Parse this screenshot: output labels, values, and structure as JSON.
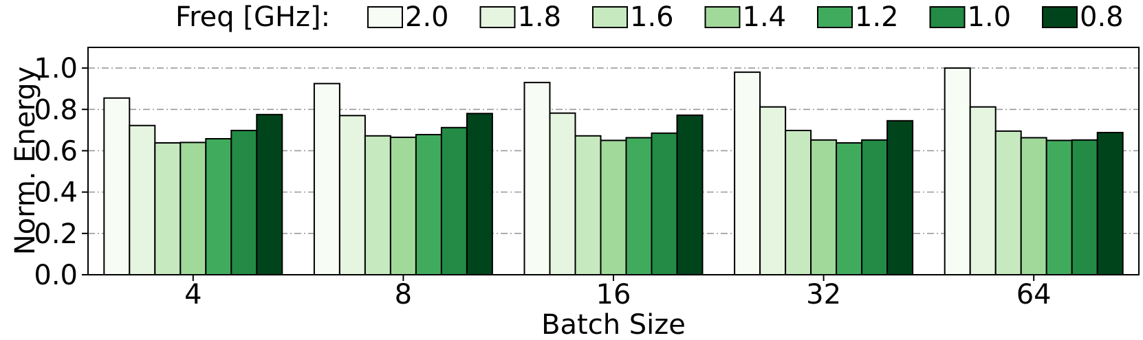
{
  "chart_data": {
    "type": "bar",
    "xlabel": "Batch Size",
    "ylabel": "Norm. Energy",
    "ylim": [
      0,
      1.1
    ],
    "yticks": [
      "0.0",
      "0.2",
      "0.4",
      "0.6",
      "0.8",
      "1.0"
    ],
    "grid": "horizontal dash-dot",
    "legend": {
      "title": "Freq [GHz]:",
      "placement": "top",
      "entries": [
        "2.0",
        "1.8",
        "1.6",
        "1.4",
        "1.2",
        "1.0",
        "0.8"
      ]
    },
    "categories": [
      "4",
      "8",
      "16",
      "32",
      "64"
    ],
    "series": [
      {
        "name": "2.0",
        "color": "#f7fcf5",
        "values": [
          0.855,
          0.925,
          0.93,
          0.98,
          1.0
        ]
      },
      {
        "name": "1.8",
        "color": "#e5f5e0",
        "values": [
          0.722,
          0.77,
          0.782,
          0.812,
          0.812
        ]
      },
      {
        "name": "1.6",
        "color": "#c7e9c0",
        "values": [
          0.638,
          0.672,
          0.672,
          0.698,
          0.695
        ]
      },
      {
        "name": "1.4",
        "color": "#a1d99b",
        "values": [
          0.64,
          0.665,
          0.65,
          0.652,
          0.663
        ]
      },
      {
        "name": "1.2",
        "color": "#41ab5d",
        "values": [
          0.658,
          0.678,
          0.663,
          0.638,
          0.65
        ]
      },
      {
        "name": "1.0",
        "color": "#238b45",
        "values": [
          0.698,
          0.712,
          0.685,
          0.652,
          0.652
        ]
      },
      {
        "name": "0.8",
        "color": "#00441b",
        "values": [
          0.775,
          0.78,
          0.772,
          0.745,
          0.688
        ]
      }
    ]
  }
}
